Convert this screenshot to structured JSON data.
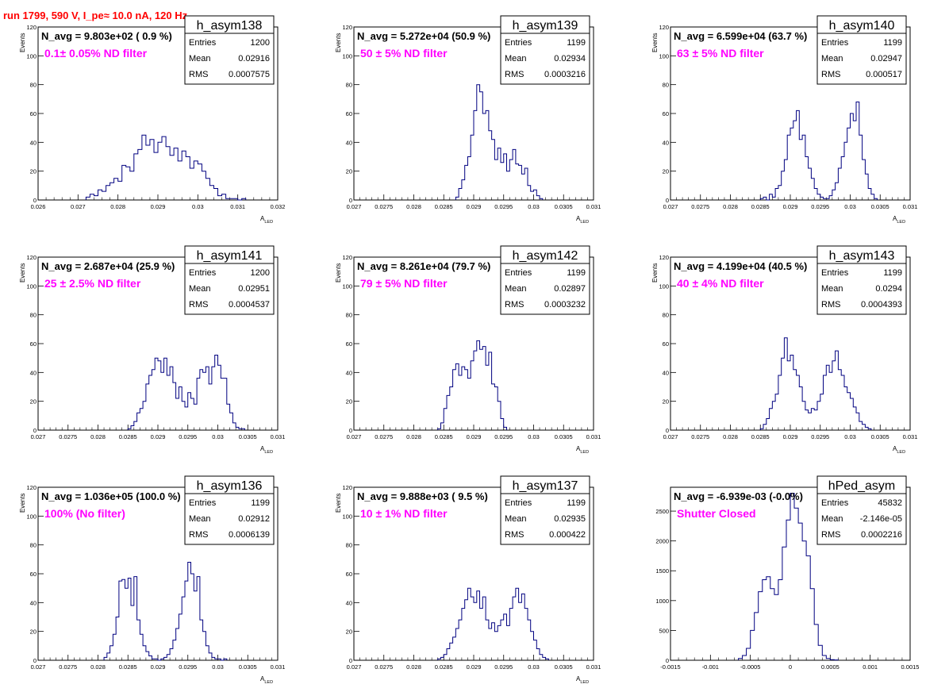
{
  "header": {
    "run_title": "run 1799,   590 V, I_pe≈ 10.0 nA, 120 Hz"
  },
  "chart_data": [
    {
      "type": "histogram",
      "name": "h_asym138",
      "navg": "N_avg = 9.803e+02 ( 0.9 %)",
      "filter": "0.1± 0.05% ND filter",
      "stats": {
        "entries": "1200",
        "mean": "0.02916",
        "rms": "0.0007575"
      },
      "xlim": [
        0.026,
        0.032
      ],
      "ylim": [
        0,
        120
      ],
      "xticks": [
        "0.026",
        "0.027",
        "0.028",
        "0.029",
        "0.03",
        "0.031",
        "0.032"
      ],
      "yticks": [
        "0",
        "20",
        "40",
        "60",
        "80",
        "100",
        "120"
      ],
      "xlabel": "A",
      "xlabel_sub": "LED",
      "ylabel": "Events",
      "x": [
        0.0272,
        0.0273,
        0.0274,
        0.0275,
        0.0276,
        0.0277,
        0.0278,
        0.0279,
        0.028,
        0.0281,
        0.0282,
        0.0283,
        0.0284,
        0.0285,
        0.0286,
        0.0287,
        0.0288,
        0.0289,
        0.029,
        0.0291,
        0.0292,
        0.0293,
        0.0294,
        0.0295,
        0.0296,
        0.0297,
        0.0298,
        0.0299,
        0.03,
        0.0301,
        0.0302,
        0.0303,
        0.0304,
        0.0305,
        0.0306,
        0.0307,
        0.0308,
        0.0309,
        0.031,
        0.0311
      ],
      "y": [
        2,
        4,
        3,
        7,
        6,
        10,
        12,
        15,
        13,
        24,
        23,
        20,
        32,
        35,
        45,
        38,
        42,
        33,
        40,
        44,
        37,
        31,
        36,
        27,
        34,
        30,
        22,
        27,
        25,
        20,
        15,
        10,
        8,
        3,
        4,
        1,
        1,
        1,
        0,
        1
      ]
    },
    {
      "type": "histogram",
      "name": "h_asym139",
      "navg": "N_avg = 5.272e+04 (50.9 %)",
      "filter": "50 ± 5% ND filter",
      "stats": {
        "entries": "1199",
        "mean": "0.02934",
        "rms": "0.0003216"
      },
      "xlim": [
        0.027,
        0.031
      ],
      "ylim": [
        0,
        120
      ],
      "xticks": [
        "0.027",
        "0.0275",
        "0.028",
        "0.0285",
        "0.029",
        "0.0295",
        "0.03",
        "0.0305",
        "0.031"
      ],
      "yticks": [
        "0",
        "20",
        "40",
        "60",
        "80",
        "100",
        "120"
      ],
      "xlabel": "A",
      "xlabel_sub": "LED",
      "ylabel": "Events",
      "x": [
        0.0287,
        0.02875,
        0.0288,
        0.02885,
        0.0289,
        0.02895,
        0.029,
        0.02905,
        0.0291,
        0.02915,
        0.0292,
        0.02925,
        0.0293,
        0.02935,
        0.0294,
        0.02945,
        0.0295,
        0.02955,
        0.0296,
        0.02965,
        0.0297,
        0.02975,
        0.0298,
        0.02985,
        0.0299,
        0.02995,
        0.03,
        0.03005,
        0.0301
      ],
      "y": [
        2,
        8,
        14,
        24,
        30,
        45,
        62,
        80,
        75,
        60,
        62,
        48,
        42,
        28,
        36,
        26,
        32,
        20,
        28,
        35,
        25,
        24,
        18,
        22,
        10,
        6,
        7,
        3,
        1
      ]
    },
    {
      "type": "histogram",
      "name": "h_asym140",
      "navg": "N_avg = 6.599e+04 (63.7 %)",
      "filter": "63 ± 5% ND filter",
      "stats": {
        "entries": "1199",
        "mean": "0.02947",
        "rms": "0.000517"
      },
      "xlim": [
        0.027,
        0.031
      ],
      "ylim": [
        0,
        120
      ],
      "xticks": [
        "0.027",
        "0.0275",
        "0.028",
        "0.0285",
        "0.029",
        "0.0295",
        "0.03",
        "0.0305",
        "0.031"
      ],
      "yticks": [
        "0",
        "20",
        "40",
        "60",
        "80",
        "100",
        "120"
      ],
      "xlabel": "A",
      "xlabel_sub": "LED",
      "ylabel": "Events",
      "x": [
        0.0285,
        0.02855,
        0.0286,
        0.02865,
        0.0287,
        0.02875,
        0.0288,
        0.02885,
        0.0289,
        0.02895,
        0.029,
        0.02905,
        0.0291,
        0.02915,
        0.0292,
        0.02925,
        0.0293,
        0.02935,
        0.0294,
        0.02945,
        0.0295,
        0.02955,
        0.0296,
        0.02965,
        0.0297,
        0.02975,
        0.0298,
        0.02985,
        0.0299,
        0.02995,
        0.03,
        0.03005,
        0.0301,
        0.03015,
        0.0302,
        0.03025,
        0.0303,
        0.03035,
        0.0304
      ],
      "y": [
        1,
        2,
        0,
        4,
        2,
        8,
        10,
        20,
        28,
        45,
        50,
        55,
        62,
        42,
        45,
        30,
        22,
        15,
        8,
        4,
        2,
        1,
        1,
        3,
        7,
        12,
        22,
        30,
        40,
        50,
        60,
        55,
        68,
        45,
        28,
        18,
        8,
        4,
        1
      ]
    },
    {
      "type": "histogram",
      "name": "h_asym141",
      "navg": "N_avg = 2.687e+04 (25.9 %)",
      "filter": "25 ± 2.5% ND filter",
      "stats": {
        "entries": "1200",
        "mean": "0.02951",
        "rms": "0.0004537"
      },
      "xlim": [
        0.027,
        0.031
      ],
      "ylim": [
        0,
        120
      ],
      "xticks": [
        "0.027",
        "0.0275",
        "0.028",
        "0.0285",
        "0.029",
        "0.0295",
        "0.03",
        "0.0305",
        "0.031"
      ],
      "yticks": [
        "0",
        "20",
        "40",
        "60",
        "80",
        "100",
        "120"
      ],
      "xlabel": "A",
      "xlabel_sub": "LED",
      "ylabel": "Events",
      "x": [
        0.0285,
        0.02855,
        0.0286,
        0.02865,
        0.0287,
        0.02875,
        0.0288,
        0.02885,
        0.0289,
        0.02895,
        0.029,
        0.02905,
        0.0291,
        0.02915,
        0.0292,
        0.02925,
        0.0293,
        0.02935,
        0.0294,
        0.02945,
        0.0295,
        0.02955,
        0.0296,
        0.02965,
        0.0297,
        0.02975,
        0.0298,
        0.02985,
        0.0299,
        0.02995,
        0.03,
        0.03005,
        0.0301,
        0.03015,
        0.0302,
        0.03025,
        0.0303,
        0.03035,
        0.0304
      ],
      "y": [
        1,
        3,
        6,
        12,
        15,
        20,
        32,
        38,
        42,
        50,
        48,
        40,
        50,
        38,
        44,
        33,
        22,
        30,
        20,
        16,
        26,
        22,
        18,
        36,
        42,
        40,
        44,
        32,
        44,
        52,
        45,
        36,
        36,
        18,
        12,
        5,
        2,
        1,
        1
      ]
    },
    {
      "type": "histogram",
      "name": "h_asym142",
      "navg": "N_avg = 8.261e+04 (79.7 %)",
      "filter": "79 ± 5% ND filter",
      "stats": {
        "entries": "1199",
        "mean": "0.02897",
        "rms": "0.0003232"
      },
      "xlim": [
        0.027,
        0.031
      ],
      "ylim": [
        0,
        120
      ],
      "xticks": [
        "0.027",
        "0.0275",
        "0.028",
        "0.0285",
        "0.029",
        "0.0295",
        "0.03",
        "0.0305",
        "0.031"
      ],
      "yticks": [
        "0",
        "20",
        "40",
        "60",
        "80",
        "100",
        "120"
      ],
      "xlabel": "A",
      "xlabel_sub": "LED",
      "ylabel": "Events",
      "x": [
        0.0284,
        0.02845,
        0.0285,
        0.02855,
        0.0286,
        0.02865,
        0.0287,
        0.02875,
        0.0288,
        0.02885,
        0.0289,
        0.02895,
        0.029,
        0.02905,
        0.0291,
        0.02915,
        0.0292,
        0.02925,
        0.0293,
        0.02935,
        0.0294,
        0.02945,
        0.0295
      ],
      "y": [
        1,
        5,
        15,
        24,
        30,
        42,
        46,
        38,
        44,
        42,
        36,
        48,
        55,
        62,
        56,
        58,
        45,
        54,
        32,
        30,
        20,
        8,
        2
      ]
    },
    {
      "type": "histogram",
      "name": "h_asym143",
      "navg": "N_avg = 4.199e+04 (40.5 %)",
      "filter": "40 ± 4% ND filter",
      "stats": {
        "entries": "1199",
        "mean": "0.0294",
        "rms": "0.0004393"
      },
      "xlim": [
        0.027,
        0.031
      ],
      "ylim": [
        0,
        120
      ],
      "xticks": [
        "0.027",
        "0.0275",
        "0.028",
        "0.0285",
        "0.029",
        "0.0295",
        "0.03",
        "0.0305",
        "0.031"
      ],
      "yticks": [
        "0",
        "20",
        "40",
        "60",
        "80",
        "100",
        "120"
      ],
      "xlabel": "A",
      "xlabel_sub": "LED",
      "ylabel": "Events",
      "x": [
        0.0285,
        0.02855,
        0.0286,
        0.02865,
        0.0287,
        0.02875,
        0.0288,
        0.02885,
        0.0289,
        0.02895,
        0.029,
        0.02905,
        0.0291,
        0.02915,
        0.0292,
        0.02925,
        0.0293,
        0.02935,
        0.0294,
        0.02945,
        0.0295,
        0.02955,
        0.0296,
        0.02965,
        0.0297,
        0.02975,
        0.0298,
        0.02985,
        0.0299,
        0.02995,
        0.03,
        0.03005,
        0.0301,
        0.03015,
        0.0302,
        0.03025,
        0.0303
      ],
      "y": [
        1,
        4,
        8,
        15,
        20,
        25,
        38,
        50,
        64,
        48,
        52,
        42,
        38,
        30,
        20,
        14,
        12,
        15,
        14,
        20,
        25,
        38,
        45,
        40,
        48,
        55,
        42,
        38,
        30,
        26,
        22,
        16,
        12,
        6,
        4,
        2,
        1
      ]
    },
    {
      "type": "histogram",
      "name": "h_asym136",
      "navg": "N_avg = 1.036e+05 (100.0 %)",
      "filter": "100% (No filter)",
      "stats": {
        "entries": "1199",
        "mean": "0.02912",
        "rms": "0.0006139"
      },
      "xlim": [
        0.027,
        0.031
      ],
      "ylim": [
        0,
        120
      ],
      "xticks": [
        "0.027",
        "0.0275",
        "0.028",
        "0.0285",
        "0.029",
        "0.0295",
        "0.03",
        "0.0305",
        "0.031"
      ],
      "yticks": [
        "0",
        "20",
        "40",
        "60",
        "80",
        "100",
        "120"
      ],
      "xlabel": "A",
      "xlabel_sub": "LED",
      "ylabel": "Events",
      "x": [
        0.0281,
        0.02815,
        0.0282,
        0.02825,
        0.0283,
        0.02835,
        0.0284,
        0.02845,
        0.0285,
        0.02855,
        0.0286,
        0.02865,
        0.0287,
        0.02875,
        0.0288,
        0.02885,
        0.0289,
        0.02895,
        0.029,
        0.02905,
        0.0291,
        0.02915,
        0.0292,
        0.02925,
        0.0293,
        0.02935,
        0.0294,
        0.02945,
        0.0295,
        0.02955,
        0.0296,
        0.02965,
        0.0297,
        0.02975,
        0.0298,
        0.02985,
        0.0299,
        0.02995,
        0.03,
        0.03005,
        0.0301
      ],
      "y": [
        2,
        5,
        10,
        18,
        30,
        55,
        56,
        50,
        57,
        38,
        58,
        28,
        18,
        10,
        6,
        3,
        1,
        1,
        0,
        1,
        2,
        4,
        8,
        14,
        22,
        32,
        44,
        55,
        68,
        60,
        48,
        58,
        28,
        20,
        10,
        5,
        2,
        1,
        1,
        0,
        1
      ]
    },
    {
      "type": "histogram",
      "name": "h_asym137",
      "navg": "N_avg = 9.888e+03 ( 9.5 %)",
      "filter": "10 ± 1% ND filter",
      "stats": {
        "entries": "1199",
        "mean": "0.02935",
        "rms": "0.000422"
      },
      "xlim": [
        0.027,
        0.031
      ],
      "ylim": [
        0,
        120
      ],
      "xticks": [
        "0.027",
        "0.0275",
        "0.028",
        "0.0285",
        "0.029",
        "0.0295",
        "0.03",
        "0.0305",
        "0.031"
      ],
      "yticks": [
        "0",
        "20",
        "40",
        "60",
        "80",
        "100",
        "120"
      ],
      "xlabel": "A",
      "xlabel_sub": "LED",
      "ylabel": "Events",
      "x": [
        0.0284,
        0.02845,
        0.0285,
        0.02855,
        0.0286,
        0.02865,
        0.0287,
        0.02875,
        0.0288,
        0.02885,
        0.0289,
        0.02895,
        0.029,
        0.02905,
        0.0291,
        0.02915,
        0.0292,
        0.02925,
        0.0293,
        0.02935,
        0.0294,
        0.02945,
        0.0295,
        0.02955,
        0.0296,
        0.02965,
        0.0297,
        0.02975,
        0.0298,
        0.02985,
        0.0299,
        0.02995,
        0.03,
        0.03005,
        0.0301,
        0.03015,
        0.0302
      ],
      "y": [
        1,
        2,
        4,
        8,
        12,
        16,
        22,
        28,
        36,
        42,
        50,
        44,
        40,
        48,
        36,
        44,
        28,
        22,
        26,
        20,
        24,
        28,
        32,
        24,
        36,
        44,
        50,
        40,
        46,
        36,
        28,
        20,
        14,
        8,
        4,
        2,
        1
      ]
    },
    {
      "type": "histogram",
      "name": "hPed_asym",
      "navg": "N_avg = -6.939e-03 (-0.0%)",
      "filter": "Shutter Closed",
      "stats": {
        "entries": "45832",
        "mean": "-2.146e-05",
        "rms": "0.0002216"
      },
      "xlim": [
        -0.0015,
        0.0015
      ],
      "ylim": [
        0,
        2900
      ],
      "xticks": [
        "-0.0015",
        "-0.001",
        "-0.0005",
        "0",
        "0.0005",
        "0.001",
        "0.0015"
      ],
      "ytick_vals": [
        0,
        500,
        1000,
        1500,
        2000,
        2500
      ],
      "yticks": [
        "0",
        "500",
        "1000",
        "1500",
        "2000",
        "2500"
      ],
      "xlabel": "",
      "xlabel_sub": "",
      "ylabel": "",
      "x": [
        -0.00065,
        -0.0006,
        -0.00055,
        -0.0005,
        -0.00045,
        -0.0004,
        -0.00035,
        -0.0003,
        -0.00025,
        -0.0002,
        -0.00015,
        -0.0001,
        -5e-05,
        0,
        5e-05,
        0.0001,
        0.00015,
        0.0002,
        0.00025,
        0.0003,
        0.00035,
        0.0004,
        0.00045,
        0.0005,
        0.00055
      ],
      "y": [
        30,
        80,
        200,
        500,
        800,
        1150,
        1350,
        1400,
        1200,
        1100,
        1350,
        1900,
        2350,
        2800,
        2550,
        2300,
        2000,
        1750,
        1200,
        600,
        250,
        80,
        30,
        10,
        5
      ]
    }
  ]
}
